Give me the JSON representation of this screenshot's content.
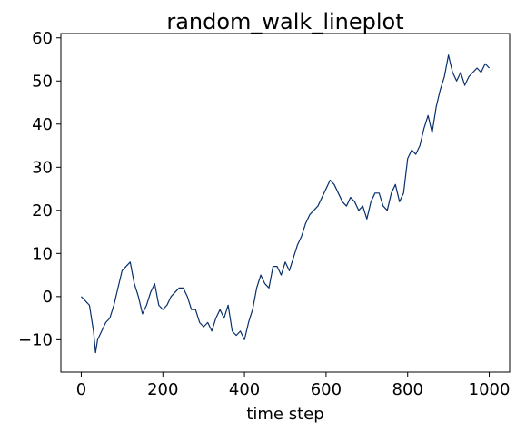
{
  "chart_data": {
    "type": "line",
    "title": "random_walk_lineplot",
    "xlabel": "time step",
    "ylabel": "",
    "xlim": [
      -50,
      1050
    ],
    "ylim": [
      -17.5,
      61
    ],
    "x_ticks": [
      0,
      200,
      400,
      600,
      800,
      1000
    ],
    "y_ticks": [
      -10,
      0,
      10,
      20,
      30,
      40,
      50,
      60
    ],
    "grid": false,
    "line_color": "#08306b",
    "series": [
      {
        "x": [
          0,
          10,
          20,
          30,
          35,
          40,
          50,
          60,
          70,
          80,
          90,
          100,
          110,
          120,
          130,
          140,
          150,
          160,
          170,
          180,
          190,
          200,
          210,
          220,
          230,
          240,
          250,
          260,
          270,
          280,
          290,
          300,
          310,
          320,
          330,
          340,
          350,
          360,
          370,
          380,
          390,
          400,
          410,
          420,
          430,
          440,
          450,
          460,
          470,
          480,
          490,
          500,
          510,
          520,
          530,
          540,
          550,
          560,
          570,
          580,
          590,
          600,
          610,
          620,
          630,
          640,
          650,
          660,
          670,
          680,
          690,
          700,
          710,
          720,
          730,
          740,
          750,
          760,
          770,
          780,
          790,
          800,
          810,
          820,
          830,
          840,
          850,
          860,
          870,
          880,
          890,
          900,
          910,
          920,
          930,
          940,
          950,
          960,
          970,
          980,
          990,
          1000
        ],
        "y": [
          0,
          -1,
          -2,
          -8,
          -13,
          -10,
          -8,
          -6,
          -5,
          -2,
          2,
          6,
          7,
          8,
          3,
          0,
          -4,
          -2,
          1,
          3,
          -2,
          -3,
          -2,
          0,
          1,
          2,
          2,
          0,
          -3,
          -3,
          -6,
          -7,
          -6,
          -8,
          -5,
          -3,
          -5,
          -2,
          -8,
          -9,
          -8,
          -10,
          -6,
          -3,
          2,
          5,
          3,
          2,
          7,
          7,
          5,
          8,
          6,
          9,
          12,
          14,
          17,
          19,
          20,
          21,
          23,
          25,
          27,
          26,
          24,
          22,
          21,
          23,
          22,
          20,
          21,
          18,
          22,
          24,
          24,
          21,
          20,
          24,
          26,
          22,
          24,
          32,
          34,
          33,
          35,
          39,
          42,
          38,
          44,
          48,
          51,
          56,
          52,
          50,
          52,
          49,
          51,
          52,
          53,
          52,
          54,
          53
        ]
      }
    ]
  }
}
